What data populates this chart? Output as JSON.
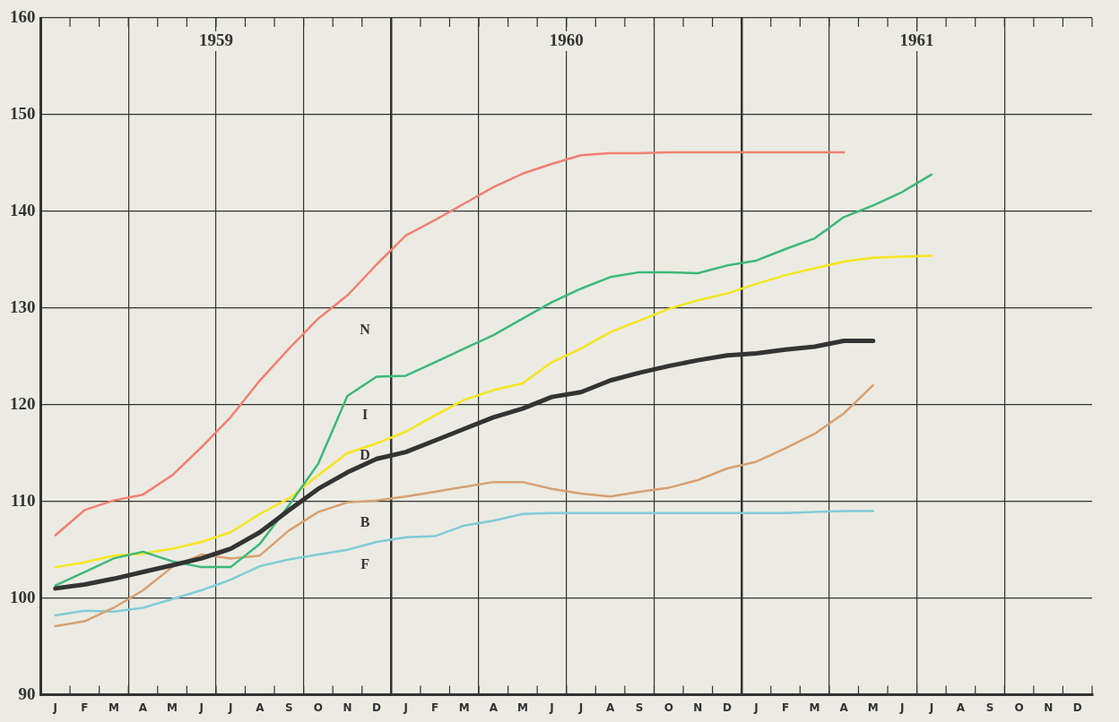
{
  "chart_data": {
    "type": "line",
    "categories": [
      "J",
      "F",
      "M",
      "A",
      "M",
      "J",
      "J",
      "A",
      "S",
      "O",
      "N",
      "D",
      "J",
      "F",
      "M",
      "A",
      "M",
      "J",
      "J",
      "A",
      "S",
      "O",
      "N",
      "D",
      "J",
      "F",
      "M",
      "A",
      "M",
      "J",
      "J",
      "A",
      "S",
      "O",
      "N",
      "D"
    ],
    "annotations": [
      "1959",
      "1960",
      "1961"
    ],
    "series": [
      {
        "name": "N",
        "color": "#f08070",
        "values": [
          106.5,
          109.1,
          110.1,
          110.7,
          112.7,
          115.6,
          118.7,
          122.5,
          125.8,
          128.9,
          131.3,
          134.5,
          137.5,
          139.1,
          140.8,
          142.5,
          143.9,
          144.9,
          145.8,
          146.0,
          146.0,
          146.1,
          146.1,
          146.1,
          146.1,
          146.1,
          146.1,
          146.1,
          null,
          null,
          null,
          null,
          null,
          null,
          null,
          null
        ]
      },
      {
        "name": "I",
        "color": "#3cb878",
        "values": [
          101.3,
          102.7,
          104.1,
          104.8,
          103.8,
          103.2,
          103.2,
          105.6,
          109.6,
          113.9,
          120.9,
          122.9,
          123.0,
          124.4,
          125.8,
          127.2,
          128.9,
          130.6,
          132.0,
          133.2,
          133.7,
          133.7,
          133.6,
          134.4,
          134.9,
          136.1,
          137.2,
          139.4,
          140.6,
          142.0,
          143.8,
          null,
          null,
          null,
          null,
          null
        ]
      },
      {
        "name": "D",
        "color": "#f5e61e",
        "values": [
          103.2,
          103.7,
          104.4,
          104.6,
          105.1,
          105.8,
          106.8,
          108.7,
          110.3,
          112.7,
          115.0,
          116.0,
          117.2,
          118.9,
          120.5,
          121.5,
          122.2,
          124.4,
          125.8,
          127.5,
          128.7,
          129.9,
          130.8,
          131.5,
          132.5,
          133.4,
          134.1,
          134.8,
          135.2,
          135.3,
          135.4,
          null,
          null,
          null,
          null,
          null
        ]
      },
      {
        "color": "#333333",
        "values": [
          101.0,
          101.4,
          102.0,
          102.7,
          103.4,
          104.1,
          105.1,
          106.8,
          109.1,
          111.3,
          113.0,
          114.4,
          115.1,
          116.3,
          117.5,
          118.7,
          119.6,
          120.8,
          121.3,
          122.5,
          123.3,
          124.0,
          124.6,
          125.1,
          125.3,
          125.7,
          126.0,
          126.6,
          126.6,
          null,
          null,
          null,
          null,
          null,
          null,
          null
        ]
      },
      {
        "name": "B",
        "color": "#d8a070",
        "values": [
          97.1,
          97.6,
          99.0,
          100.8,
          103.2,
          104.5,
          104.1,
          104.4,
          107.0,
          108.9,
          109.9,
          110.1,
          110.5,
          111.0,
          111.5,
          112.0,
          112.0,
          111.3,
          110.8,
          110.5,
          111.0,
          111.4,
          112.2,
          113.4,
          114.1,
          115.5,
          117.0,
          119.1,
          122.0,
          null,
          null,
          null,
          null,
          null,
          null,
          null
        ]
      },
      {
        "name": "F",
        "color": "#80ccd8",
        "values": [
          98.2,
          98.7,
          98.6,
          99.0,
          99.9,
          100.8,
          101.9,
          103.3,
          104.0,
          104.5,
          105.0,
          105.8,
          106.3,
          106.4,
          107.5,
          108.0,
          108.7,
          108.8,
          108.8,
          108.8,
          108.8,
          108.8,
          108.8,
          108.8,
          108.8,
          108.8,
          108.9,
          109.0,
          109.0,
          null,
          null,
          null,
          null,
          null,
          null,
          null
        ]
      }
    ],
    "ylim": [
      90,
      160
    ],
    "yticks": [
      90,
      100,
      110,
      120,
      130,
      140,
      150,
      160
    ],
    "grid": true,
    "legend": false,
    "marker": "none",
    "line_style": "solid"
  }
}
